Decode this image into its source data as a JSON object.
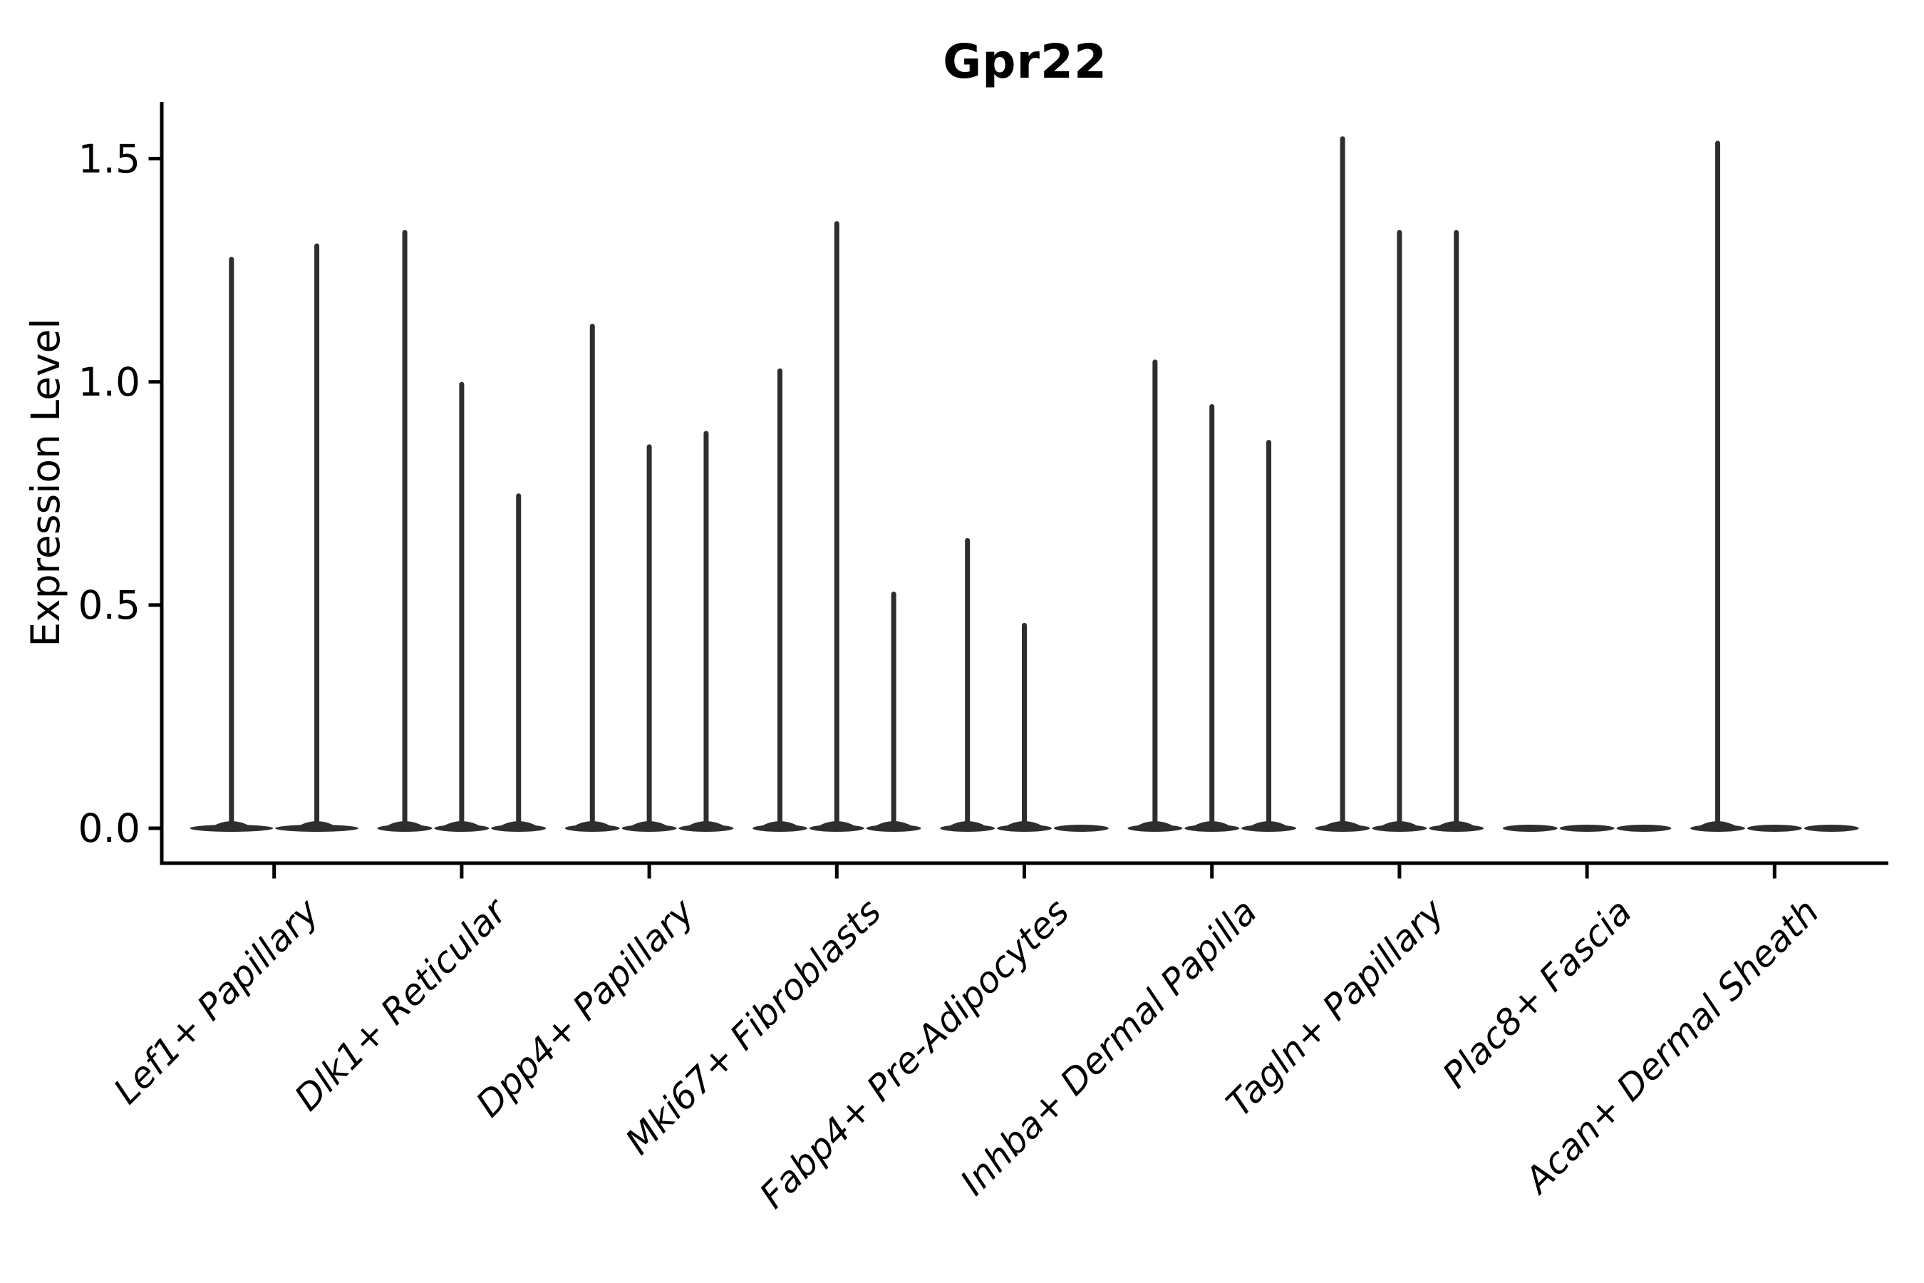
{
  "title": "Gpr22",
  "y_axis": {
    "label": "Expression Level",
    "ticks": [
      {
        "label": "1.5",
        "value": 1.5
      },
      {
        "label": "1.0",
        "value": 1.0
      },
      {
        "label": "0.5",
        "value": 0.5
      },
      {
        "label": "0.0",
        "value": 0.0
      }
    ]
  },
  "chart_data": {
    "type": "violin",
    "title": "Gpr22",
    "ylabel": "Expression Level",
    "ylim": [
      -0.08,
      1.63
    ],
    "yticks": [
      0.0,
      0.5,
      1.0,
      1.5
    ],
    "grid": false,
    "legend": "none",
    "note": "Each category holds 2-3 narrow violins: a flat density pancake at 0 with a thin spike rising to the max expression value; 0 means a fully flat violin with no spike.",
    "categories": [
      "Lef1+ Papillary",
      "Dlk1+ Reticular",
      "Dpp4+ Papillary",
      "Mki67+ Fibroblasts",
      "Fabp4+ Pre-Adipocytes",
      "Inhba+ Dermal Papilla",
      "Tagln+ Papillary",
      "Plac8+ Fascia",
      "Acan+ Dermal Sheath"
    ],
    "series": [
      {
        "category": "Lef1+ Papillary",
        "violin_peaks": [
          1.28,
          1.31
        ]
      },
      {
        "category": "Dlk1+ Reticular",
        "violin_peaks": [
          1.34,
          1.0,
          0.75
        ]
      },
      {
        "category": "Dpp4+ Papillary",
        "violin_peaks": [
          1.13,
          0.86,
          0.89
        ]
      },
      {
        "category": "Mki67+ Fibroblasts",
        "violin_peaks": [
          1.03,
          1.36,
          0.53
        ]
      },
      {
        "category": "Fabp4+ Pre-Adipocytes",
        "violin_peaks": [
          0.65,
          0.46,
          0.0
        ]
      },
      {
        "category": "Inhba+ Dermal Papilla",
        "violin_peaks": [
          1.05,
          0.95,
          0.87
        ]
      },
      {
        "category": "Tagln+ Papillary",
        "violin_peaks": [
          1.55,
          1.34,
          1.34
        ]
      },
      {
        "category": "Plac8+ Fascia",
        "violin_peaks": [
          0.0,
          0.0,
          0.0
        ]
      },
      {
        "category": "Acan+ Dermal Sheath",
        "violin_peaks": [
          1.54,
          0.0,
          0.0
        ]
      }
    ],
    "colors": {
      "violin": "#2e2e2e",
      "axis": "#000000",
      "text": "#000000",
      "background": "#ffffff"
    }
  }
}
